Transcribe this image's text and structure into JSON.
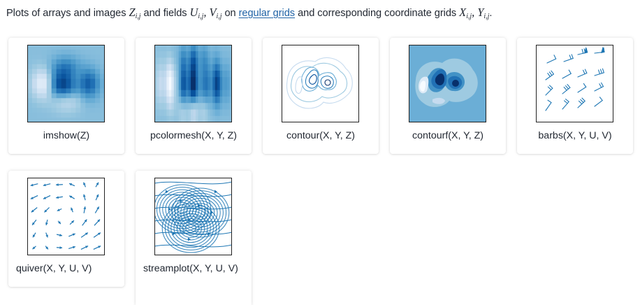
{
  "intro": {
    "text1": "Plots of arrays and images ",
    "math_Z": "Z",
    "math_Z_sub": "i,j",
    "text2": " and fields ",
    "math_U": "U",
    "math_U_sub": "i,j",
    "math_sep": ", ",
    "math_V": "V",
    "math_V_sub": "i,j",
    "text3": " on ",
    "link": "regular grids",
    "text4": " and corresponding coordinate grids ",
    "math_X": "X",
    "math_X_sub": "i,j",
    "math_sep2": ", ",
    "math_Y": "Y",
    "math_Y_sub": "i,j",
    "text5": "."
  },
  "cards": [
    {
      "caption": "imshow(Z)"
    },
    {
      "caption": "pcolormesh(X, Y, Z)"
    },
    {
      "caption": "contour(X, Y, Z)"
    },
    {
      "caption": "contourf(X, Y, Z)"
    },
    {
      "caption": "barbs(X, Y, U, V)"
    },
    {
      "caption": "quiver(X, Y, U, V)"
    },
    {
      "caption": "streamplot(X, Y, U, V)"
    }
  ],
  "colors": {
    "accent_blue": "#1f77b4",
    "link": "#2163a6",
    "dark_blue": "#08306b",
    "light_blue": "#c6dbef"
  }
}
